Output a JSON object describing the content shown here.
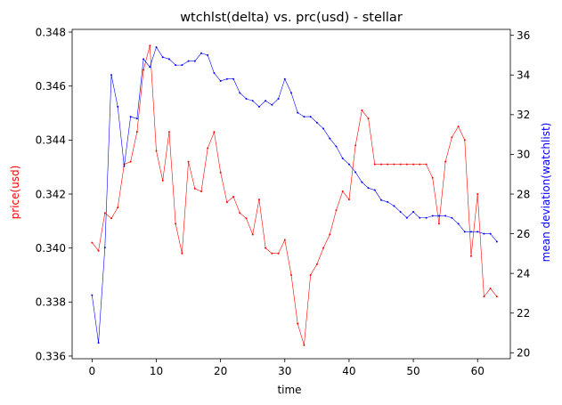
{
  "chart_data": {
    "type": "line",
    "title": "wtchlst(delta) vs. prc(usd) - stellar",
    "xlabel": "time",
    "ylabel_left": "price(usd)",
    "ylabel_right": "mean deviation(watchlist)",
    "xlim": [
      -3.1,
      65.1
    ],
    "ylim_left": [
      0.3359,
      0.3481
    ],
    "ylim_right": [
      19.7,
      36.3
    ],
    "x_ticks": [
      0,
      10,
      20,
      30,
      40,
      50,
      60
    ],
    "y_left_ticks": [
      0.336,
      0.338,
      0.34,
      0.342,
      0.344,
      0.346,
      0.348
    ],
    "y_left_tick_labels": [
      "0.336",
      "0.338",
      "0.340",
      "0.342",
      "0.344",
      "0.346",
      "0.348"
    ],
    "y_right_ticks": [
      20,
      22,
      24,
      26,
      28,
      30,
      32,
      34,
      36
    ],
    "grid": false,
    "series": [
      {
        "axis": "left",
        "color": "#ff0000",
        "values": [
          0.3402,
          0.3399,
          0.3413,
          0.3411,
          0.3415,
          0.3431,
          0.3432,
          0.3443,
          0.3466,
          0.3475,
          0.3436,
          0.3425,
          0.3443,
          0.3409,
          0.3398,
          0.3432,
          0.3422,
          0.3421,
          0.3437,
          0.3443,
          0.3428,
          0.3417,
          0.3419,
          0.3413,
          0.3411,
          0.3405,
          0.3418,
          0.34,
          0.3398,
          0.3398,
          0.3403,
          0.339,
          0.3372,
          0.3364,
          0.339,
          0.3394,
          0.34,
          0.3405,
          0.3414,
          0.3421,
          0.3418,
          0.3438,
          0.3451,
          0.3448,
          0.3431,
          0.3431,
          0.3431,
          0.3431,
          0.3431,
          0.3431,
          0.3431,
          0.3431,
          0.3431,
          0.3426,
          0.3409,
          0.3432,
          0.3441,
          0.3445,
          0.344,
          0.3397,
          0.342,
          0.3382,
          0.3385,
          0.3382
        ]
      },
      {
        "axis": "right",
        "color": "#0000ff",
        "values": [
          22.9,
          20.5,
          25.3,
          34.0,
          32.4,
          29.4,
          31.9,
          31.8,
          34.8,
          34.4,
          35.4,
          34.9,
          34.8,
          34.5,
          34.5,
          34.7,
          34.7,
          35.1,
          35.0,
          34.1,
          33.7,
          33.8,
          33.8,
          33.1,
          32.8,
          32.7,
          32.4,
          32.7,
          32.5,
          32.8,
          33.8,
          33.1,
          32.1,
          31.9,
          31.9,
          31.6,
          31.3,
          30.8,
          30.4,
          29.8,
          29.5,
          29.1,
          28.6,
          28.3,
          28.2,
          27.7,
          27.6,
          27.4,
          27.1,
          26.8,
          27.1,
          26.8,
          26.8,
          26.9,
          26.9,
          26.9,
          26.8,
          26.5,
          26.1,
          26.1,
          26.1,
          26.0,
          26.0,
          25.6
        ]
      }
    ]
  }
}
